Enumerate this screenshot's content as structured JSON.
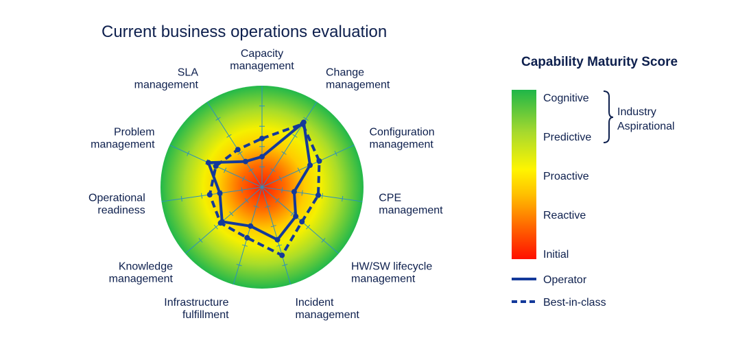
{
  "chart_data": {
    "type": "radar",
    "title": "Current business operations evaluation",
    "max_value": 5,
    "axes": [
      [
        "Capacity",
        "management"
      ],
      [
        "Change",
        "management"
      ],
      [
        "Configuration",
        "management"
      ],
      [
        "CPE",
        "management"
      ],
      [
        "HW/SW lifecycle",
        "management"
      ],
      [
        "Incident",
        "management"
      ],
      [
        "Infrastructure",
        "fulfillment"
      ],
      [
        "Knowledge",
        "management"
      ],
      [
        "Operational",
        "readiness"
      ],
      [
        "Problem",
        "management"
      ],
      [
        "SLA",
        "management"
      ]
    ],
    "series": [
      {
        "name": "Operator",
        "values": [
          1.5,
          3.8,
          2.6,
          1.6,
          2.2,
          2.7,
          2.0,
          2.6,
          2.1,
          2.9,
          1.5
        ],
        "color": "#13399a",
        "dash": false
      },
      {
        "name": "Best-in-class",
        "values": [
          2.4,
          3.7,
          3.1,
          2.8,
          2.6,
          3.5,
          2.6,
          2.7,
          2.6,
          2.5,
          2.2
        ],
        "color": "#13399a",
        "dash": true
      }
    ],
    "legend": {
      "title": "Capability Maturity Score",
      "levels": [
        "Cognitive",
        "Predictive",
        "Proactive",
        "Reactive",
        "Initial"
      ],
      "bracket_label": [
        "Industry",
        "Aspirational"
      ],
      "position": "right"
    },
    "colors": {
      "text": "#0d1f4d",
      "line": "#13399a",
      "axis": "#2a8fbf"
    }
  }
}
